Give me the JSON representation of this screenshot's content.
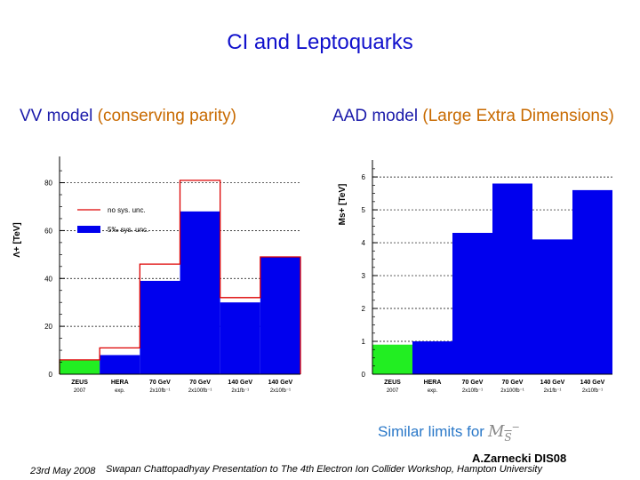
{
  "slide": {
    "title": "CI and Leptoquarks",
    "similar_note": "Similar limits for",
    "similar_symbol": "M",
    "similar_subscript": "S",
    "similar_sup": "−",
    "author": "A.Zarnecki DIS08",
    "date": "23rd May 2008",
    "footer": "Swapan Chattopadhyay  Presentation to The 4th Electron Ion Collider Workshop, Hampton University"
  },
  "chart_data": [
    {
      "type": "bar",
      "heading_model": "VV model",
      "heading_paren": "(conserving parity)",
      "ylabel": "Λ+ [TeV]",
      "ylim": [
        0,
        88
      ],
      "yticks": [
        0,
        20,
        40,
        60,
        80
      ],
      "categories": [
        {
          "name": "ZEUS",
          "sub": "2007"
        },
        {
          "name": "HERA",
          "sub": "exp."
        },
        {
          "name": "70 GeV",
          "sub": "2x10fb⁻¹"
        },
        {
          "name": "70 GeV",
          "sub": "2x100fb⁻¹"
        },
        {
          "name": "140 GeV",
          "sub": "2x1fb⁻¹"
        },
        {
          "name": "140 GeV",
          "sub": "2x10fb⁻¹"
        }
      ],
      "series": [
        {
          "name": "no sys. unc.",
          "values": [
            6,
            11,
            46,
            81,
            32,
            49
          ],
          "color": "#dd0000"
        },
        {
          "name": "5‰ sys. unc.",
          "values": [
            6,
            8,
            39,
            68,
            30,
            49
          ],
          "color": "#0000ee"
        }
      ],
      "bar_colors": [
        "#22ee22",
        "#0000ee",
        "#0000ee",
        "#0000ee",
        "#0000ee",
        "#0000ee"
      ],
      "legend_position": "top-left",
      "grid": true
    },
    {
      "type": "bar",
      "heading_model": "AAD model",
      "heading_paren": "(Large Extra Dimensions)",
      "ylabel": "Ms+ [TeV]",
      "ylim": [
        0,
        6.3
      ],
      "yticks": [
        0,
        1,
        2,
        3,
        4,
        5,
        6
      ],
      "categories": [
        {
          "name": "ZEUS",
          "sub": "2007"
        },
        {
          "name": "HERA",
          "sub": "exp."
        },
        {
          "name": "70 GeV",
          "sub": "2x10fb⁻¹"
        },
        {
          "name": "70 GeV",
          "sub": "2x100fb⁻¹"
        },
        {
          "name": "140 GeV",
          "sub": "2x1fb⁻¹"
        },
        {
          "name": "140 GeV",
          "sub": "2x10fb⁻¹"
        }
      ],
      "values": [
        0.9,
        1.0,
        4.3,
        5.8,
        4.1,
        5.6
      ],
      "bar_colors": [
        "#22ee22",
        "#0000ee",
        "#0000ee",
        "#0000ee",
        "#0000ee",
        "#0000ee"
      ],
      "grid": true
    }
  ]
}
